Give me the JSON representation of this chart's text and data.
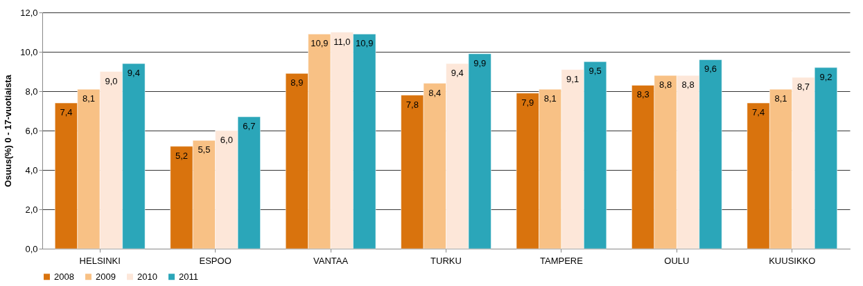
{
  "chart_data": {
    "type": "bar",
    "ylabel": "Osuus(%) 0 - 17-vuotiaista",
    "categories": [
      "HELSINKI",
      "ESPOO",
      "VANTAA",
      "TURKU",
      "TAMPERE",
      "OULU",
      "KUUSIKKO"
    ],
    "series": [
      {
        "name": "2008",
        "color": "#d9730d",
        "values": [
          7.4,
          5.2,
          8.9,
          7.8,
          7.9,
          8.3,
          7.4
        ],
        "value_labels": [
          "7,4",
          "5,2",
          "8,9",
          "7,8",
          "7,9",
          "8,3",
          "7,4"
        ]
      },
      {
        "name": "2009",
        "color": "#f8c185",
        "values": [
          8.1,
          5.5,
          10.9,
          8.4,
          8.1,
          8.8,
          8.1
        ],
        "value_labels": [
          "8,1",
          "5,5",
          "10,9",
          "8,4",
          "8,1",
          "8,8",
          "8,1"
        ]
      },
      {
        "name": "2010",
        "color": "#fde7d9",
        "values": [
          9.0,
          6.0,
          11.0,
          9.4,
          9.1,
          8.8,
          8.7
        ],
        "value_labels": [
          "9,0",
          "6,0",
          "11,0",
          "9,4",
          "9,1",
          "8,8",
          "8,7"
        ]
      },
      {
        "name": "2011",
        "color": "#2ba6b9",
        "values": [
          9.4,
          6.7,
          10.9,
          9.9,
          9.5,
          9.6,
          9.2
        ],
        "value_labels": [
          "9,4",
          "6,7",
          "10,9",
          "9,9",
          "9,5",
          "9,6",
          "9,2"
        ]
      }
    ],
    "ylim": [
      0,
      12
    ],
    "yticks": [
      {
        "value": 0,
        "label": "0,0"
      },
      {
        "value": 2,
        "label": "2,0"
      },
      {
        "value": 4,
        "label": "4,0"
      },
      {
        "value": 6,
        "label": "6,0"
      },
      {
        "value": 8,
        "label": "8,0"
      },
      {
        "value": 10,
        "label": "10,0"
      },
      {
        "value": 12,
        "label": "12,0"
      }
    ],
    "grid": "y",
    "legend": "bottom"
  }
}
